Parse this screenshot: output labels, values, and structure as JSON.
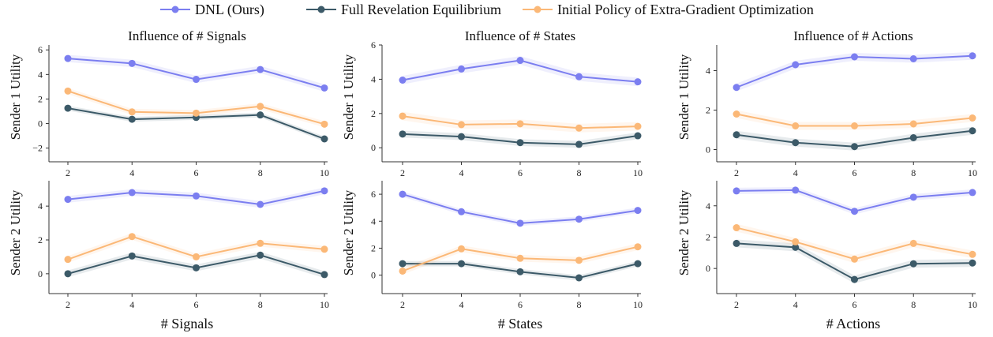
{
  "figure": {
    "legend": [
      {
        "label": "DNL (Ours)",
        "color": "#7b7ef0"
      },
      {
        "label": "Full Revelation Equilibrium",
        "color": "#3c5a68"
      },
      {
        "label": "Initial Policy of Extra-Gradient Optimization",
        "color": "#fbb877"
      }
    ],
    "column_titles": [
      "Influence of # Signals",
      "Influence of # States",
      "Influence of # Actions"
    ],
    "row_ylabels": [
      "Sender 1 Utility",
      "Sender 2 Utility"
    ],
    "column_xlabels": [
      "# Signals",
      "# States",
      "# Actions"
    ]
  },
  "chart_data": [
    {
      "type": "line",
      "panel": "signals-sender1",
      "title": "Influence of # Signals",
      "xlabel": "",
      "ylabel": "Sender 1 Utility",
      "x": [
        2,
        4,
        6,
        8,
        10
      ],
      "xticks": [
        "2",
        "4",
        "6",
        "8",
        "10"
      ],
      "ylim": [
        -2.6,
        6.4
      ],
      "yticks": [
        -2,
        0,
        2,
        4,
        6
      ],
      "ytick_labels": [
        "−2",
        "0",
        "2",
        "4",
        "6"
      ],
      "series": [
        {
          "name": "DNL (Ours)",
          "color": "#7b7ef0",
          "values": [
            5.3,
            4.9,
            3.6,
            4.4,
            2.9
          ],
          "band": 0.3
        },
        {
          "name": "Full Revelation Equilibrium",
          "color": "#3c5a68",
          "values": [
            1.25,
            0.35,
            0.5,
            0.7,
            -1.25
          ],
          "band": 0.2
        },
        {
          "name": "Initial Policy of Extra-Gradient Optimization",
          "color": "#fbb877",
          "values": [
            2.65,
            0.95,
            0.85,
            1.4,
            -0.05
          ],
          "band": 0.25
        }
      ]
    },
    {
      "type": "line",
      "panel": "states-sender1",
      "title": "Influence of # States",
      "xlabel": "",
      "ylabel": "",
      "x": [
        2,
        4,
        6,
        8,
        10
      ],
      "xticks": [
        "2",
        "4",
        "6",
        "8",
        "10"
      ],
      "ylim": [
        -0.45,
        6.0
      ],
      "yticks": [
        0,
        2,
        4,
        6
      ],
      "ytick_labels": [
        "0",
        "2",
        "4",
        "6"
      ],
      "series": [
        {
          "name": "DNL (Ours)",
          "color": "#7b7ef0",
          "values": [
            3.95,
            4.6,
            5.1,
            4.15,
            3.85
          ],
          "band": 0.25
        },
        {
          "name": "Full Revelation Equilibrium",
          "color": "#3c5a68",
          "values": [
            0.8,
            0.65,
            0.3,
            0.2,
            0.7
          ],
          "band": 0.2
        },
        {
          "name": "Initial Policy of Extra-Gradient Optimization",
          "color": "#fbb877",
          "values": [
            1.85,
            1.35,
            1.4,
            1.15,
            1.25
          ],
          "band": 0.25
        }
      ]
    },
    {
      "type": "line",
      "panel": "actions-sender1",
      "title": "Influence of # Actions",
      "xlabel": "",
      "ylabel": "",
      "x": [
        2,
        4,
        6,
        8,
        10
      ],
      "xticks": [
        "2",
        "4",
        "6",
        "8",
        "10"
      ],
      "ylim": [
        -0.3,
        5.3
      ],
      "yticks": [
        0,
        2,
        4
      ],
      "ytick_labels": [
        "0",
        "2",
        "4"
      ],
      "series": [
        {
          "name": "DNL (Ours)",
          "color": "#7b7ef0",
          "values": [
            3.15,
            4.3,
            4.7,
            4.6,
            4.75
          ],
          "band": 0.2
        },
        {
          "name": "Full Revelation Equilibrium",
          "color": "#3c5a68",
          "values": [
            0.75,
            0.35,
            0.15,
            0.6,
            0.95
          ],
          "band": 0.2
        },
        {
          "name": "Initial Policy of Extra-Gradient Optimization",
          "color": "#fbb877",
          "values": [
            1.8,
            1.2,
            1.2,
            1.3,
            1.6
          ],
          "band": 0.2
        }
      ]
    },
    {
      "type": "line",
      "panel": "signals-sender2",
      "title": "",
      "xlabel": "# Signals",
      "ylabel": "Sender 2 Utility",
      "x": [
        2,
        4,
        6,
        8,
        10
      ],
      "xticks": [
        "2",
        "4",
        "6",
        "8",
        "10"
      ],
      "ylim": [
        -0.8,
        5.5
      ],
      "yticks": [
        0,
        2,
        4
      ],
      "ytick_labels": [
        "0",
        "2",
        "4"
      ],
      "series": [
        {
          "name": "DNL (Ours)",
          "color": "#7b7ef0",
          "values": [
            4.4,
            4.8,
            4.6,
            4.1,
            4.9
          ],
          "band": 0.2
        },
        {
          "name": "Full Revelation Equilibrium",
          "color": "#3c5a68",
          "values": [
            0.0,
            1.05,
            0.35,
            1.1,
            -0.05
          ],
          "band": 0.2
        },
        {
          "name": "Initial Policy of Extra-Gradient Optimization",
          "color": "#fbb877",
          "values": [
            0.85,
            2.2,
            1.0,
            1.8,
            1.45
          ],
          "band": 0.2
        }
      ]
    },
    {
      "type": "line",
      "panel": "states-sender2",
      "title": "",
      "xlabel": "# States",
      "ylabel": "",
      "x": [
        2,
        4,
        6,
        8,
        10
      ],
      "xticks": [
        "2",
        "4",
        "6",
        "8",
        "10"
      ],
      "ylim": [
        -0.9,
        7.0
      ],
      "yticks": [
        0,
        2,
        4,
        6
      ],
      "ytick_labels": [
        "0",
        "2",
        "4",
        "6"
      ],
      "series": [
        {
          "name": "DNL (Ours)",
          "color": "#7b7ef0",
          "values": [
            6.0,
            4.7,
            3.85,
            4.15,
            4.8
          ],
          "band": 0.2
        },
        {
          "name": "Full Revelation Equilibrium",
          "color": "#3c5a68",
          "values": [
            0.85,
            0.85,
            0.25,
            -0.2,
            0.85
          ],
          "band": 0.2
        },
        {
          "name": "Initial Policy of Extra-Gradient Optimization",
          "color": "#fbb877",
          "values": [
            0.3,
            1.95,
            1.25,
            1.1,
            2.1
          ],
          "band": 0.25
        }
      ]
    },
    {
      "type": "line",
      "panel": "actions-sender2",
      "title": "",
      "xlabel": "# Actions",
      "ylabel": "",
      "x": [
        2,
        4,
        6,
        8,
        10
      ],
      "xticks": [
        "2",
        "4",
        "6",
        "8",
        "10"
      ],
      "ylim": [
        -1.2,
        5.6
      ],
      "yticks": [
        0,
        2,
        4
      ],
      "ytick_labels": [
        "0",
        "2",
        "4"
      ],
      "series": [
        {
          "name": "DNL (Ours)",
          "color": "#7b7ef0",
          "values": [
            4.95,
            5.0,
            3.65,
            4.55,
            4.85
          ],
          "band": 0.2
        },
        {
          "name": "Full Revelation Equilibrium",
          "color": "#3c5a68",
          "values": [
            1.6,
            1.35,
            -0.7,
            0.3,
            0.35
          ],
          "band": 0.25
        },
        {
          "name": "Initial Policy of Extra-Gradient Optimization",
          "color": "#fbb877",
          "values": [
            2.6,
            1.7,
            0.6,
            1.6,
            0.9
          ],
          "band": 0.25
        }
      ]
    }
  ]
}
